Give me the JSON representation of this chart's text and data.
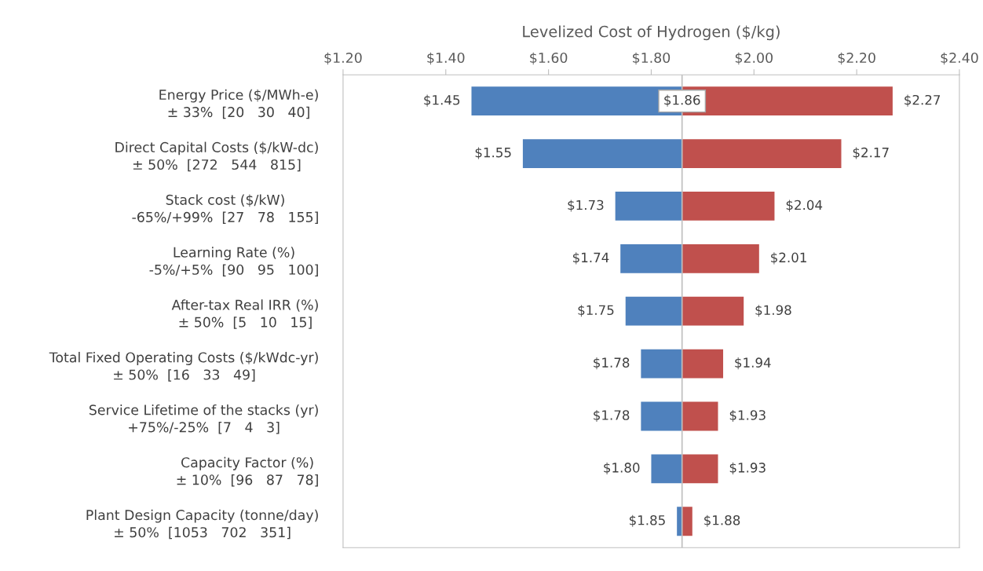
{
  "chart_data": {
    "type": "bar",
    "orientation": "horizontal",
    "xlabel": "Levelized Cost of Hydrogen ($/kg)",
    "categories": [
      "Energy Price ($/MWh-e)\n± 33%  [20   30   40]",
      "Direct Capital Costs ($/kW-dc)\n± 50%  [272   544   815]",
      "Stack cost ($/kW)\n-65%/+99%  [27   78   155]",
      "Learning Rate (%)\n-5%/+5%  [90   95   100]",
      "After-tax Real IRR (%)\n± 50%  [5   10   15]",
      "Total Fixed Operating Costs ($/kWdc-yr)\n± 50%  [16   33   49]",
      "Service Lifetime of the stacks (yr)\n+75%/-25%  [7   4   3]",
      "Capacity Factor (%)\n± 10%  [96   87   78]",
      "Plant Design Capacity (tonne/day)\n± 50%  [1053   702   351]"
    ],
    "series": [
      {
        "color": "#4f81bd",
        "base": [
          1.86,
          1.86,
          1.86,
          1.86,
          1.86,
          1.86,
          1.86,
          1.86,
          1.86
        ],
        "values": [
          -0.41,
          -0.31,
          -0.13,
          -0.12,
          -0.11,
          -0.08,
          -0.08,
          -0.06,
          -0.01
        ],
        "value_labels": [
          "$1.45",
          "$1.55",
          "$1.73",
          "$1.74",
          "$1.75",
          "$1.78",
          "$1.78",
          "$1.80",
          "$1.85"
        ]
      },
      {
        "color": "#c0504d",
        "base": [
          1.86,
          1.86,
          1.86,
          1.86,
          1.86,
          1.86,
          1.86,
          1.86,
          1.86
        ],
        "values": [
          0.41,
          0.31,
          0.18,
          0.15,
          0.12,
          0.08,
          0.07,
          0.07,
          0.02
        ],
        "value_labels": [
          "$2.27",
          "$2.17",
          "$2.04",
          "$2.01",
          "$1.98",
          "$1.94",
          "$1.93",
          "$1.93",
          "$1.88"
        ]
      }
    ],
    "xlim": [
      1.2,
      2.4
    ],
    "xticks": [
      {
        "value": 1.2,
        "label": "$1.20"
      },
      {
        "value": 1.4,
        "label": "$1.40"
      },
      {
        "value": 1.6,
        "label": "$1.60"
      },
      {
        "value": 1.8,
        "label": "$1.80"
      },
      {
        "value": 2.0,
        "label": "$2.00"
      },
      {
        "value": 2.2,
        "label": "$2.20"
      },
      {
        "value": 2.4,
        "label": "$2.40"
      }
    ],
    "ref_lines": [
      {
        "axis": "x",
        "value": 1.86,
        "label": "$1.86",
        "color": "#bfbfbf"
      }
    ],
    "grid": false,
    "legend": false
  }
}
